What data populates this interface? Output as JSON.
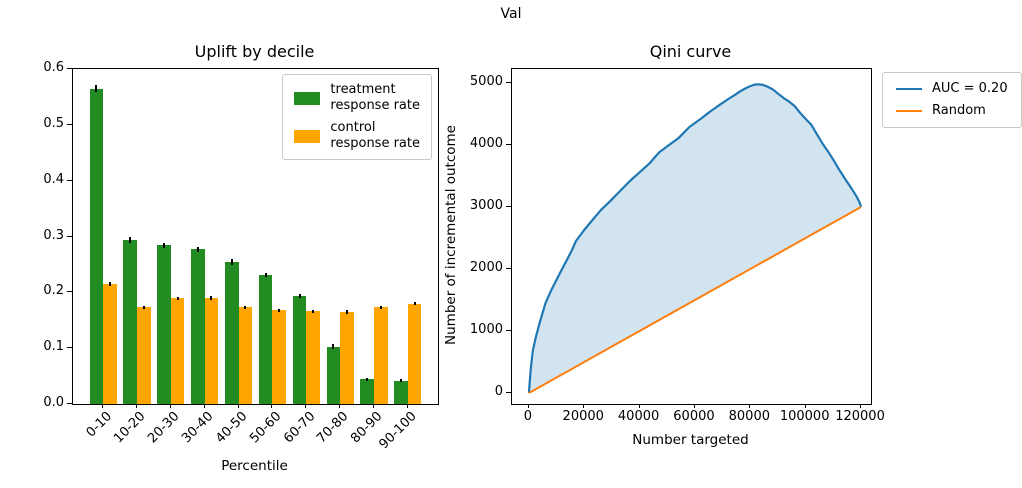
{
  "suptitle": "Val",
  "chart_data": [
    {
      "type": "bar",
      "title": "Uplift by decile",
      "xlabel": "Percentile",
      "categories": [
        "0-10",
        "10-20",
        "20-30",
        "30-40",
        "40-50",
        "50-60",
        "60-70",
        "70-80",
        "80-90",
        "90-100"
      ],
      "series": [
        {
          "name": "treatment\nresponse rate",
          "color": "#228B22",
          "values": [
            0.565,
            0.294,
            0.284,
            0.277,
            0.254,
            0.231,
            0.193,
            0.103,
            0.044,
            0.042
          ],
          "errors": [
            0.006,
            0.005,
            0.005,
            0.005,
            0.005,
            0.004,
            0.004,
            0.004,
            0.002,
            0.002
          ]
        },
        {
          "name": "control\nresponse rate",
          "color": "#FFA500",
          "values": [
            0.215,
            0.173,
            0.189,
            0.19,
            0.173,
            0.168,
            0.166,
            0.165,
            0.173,
            0.18
          ],
          "errors": [
            0.004,
            0.003,
            0.003,
            0.003,
            0.003,
            0.003,
            0.003,
            0.003,
            0.003,
            0.003
          ]
        }
      ],
      "ylim": [
        0,
        0.6
      ],
      "yticks": [
        0,
        0.1,
        0.2,
        0.3,
        0.4,
        0.5,
        0.6
      ],
      "ytick_labels": [
        "0.0",
        "0.1",
        "0.2",
        "0.3",
        "0.4",
        "0.5",
        "0.6"
      ],
      "xlim": [
        -0.89,
        9.89
      ],
      "bar_width": 0.4,
      "grid": false,
      "legend_position": "upper right"
    },
    {
      "type": "line",
      "title": "Qini curve",
      "xlabel": "Number targeted",
      "ylabel": "Number of incremental outcome",
      "series": [
        {
          "name": "AUC = 0.20",
          "color": "#1f77b4",
          "fill": "rgba(31,119,180,0.2)",
          "points": [
            [
              0,
              0
            ],
            [
              700,
              400
            ],
            [
              1400,
              680
            ],
            [
              2500,
              900
            ],
            [
              4000,
              1150
            ],
            [
              6000,
              1450
            ],
            [
              8000,
              1650
            ],
            [
              10000,
              1830
            ],
            [
              12000,
              2000
            ],
            [
              14000,
              2170
            ],
            [
              15500,
              2300
            ],
            [
              17000,
              2450
            ],
            [
              20000,
              2630
            ],
            [
              23000,
              2790
            ],
            [
              26000,
              2950
            ],
            [
              29500,
              3100
            ],
            [
              33000,
              3260
            ],
            [
              36500,
              3420
            ],
            [
              40000,
              3560
            ],
            [
              43500,
              3700
            ],
            [
              47000,
              3880
            ],
            [
              50000,
              3980
            ],
            [
              54000,
              4110
            ],
            [
              58000,
              4290
            ],
            [
              62000,
              4420
            ],
            [
              65500,
              4540
            ],
            [
              69000,
              4650
            ],
            [
              72000,
              4740
            ],
            [
              74500,
              4810
            ],
            [
              76500,
              4870
            ],
            [
              78500,
              4920
            ],
            [
              80000,
              4950
            ],
            [
              81500,
              4975
            ],
            [
              83000,
              4980
            ],
            [
              84500,
              4970
            ],
            [
              86000,
              4945
            ],
            [
              88000,
              4900
            ],
            [
              90000,
              4830
            ],
            [
              92000,
              4760
            ],
            [
              94000,
              4700
            ],
            [
              96000,
              4630
            ],
            [
              98000,
              4520
            ],
            [
              100000,
              4420
            ],
            [
              102000,
              4330
            ],
            [
              104000,
              4180
            ],
            [
              106000,
              4030
            ],
            [
              108000,
              3900
            ],
            [
              110000,
              3760
            ],
            [
              112000,
              3610
            ],
            [
              114000,
              3470
            ],
            [
              115500,
              3370
            ],
            [
              117000,
              3270
            ],
            [
              118500,
              3160
            ],
            [
              119500,
              3070
            ],
            [
              120000,
              3000
            ]
          ]
        },
        {
          "name": "Random",
          "color": "#ff7f0e",
          "points": [
            [
              0,
              0
            ],
            [
              120000,
              3000
            ]
          ]
        }
      ],
      "xlim": [
        -6100,
        123600
      ],
      "ylim": [
        -177,
        5226
      ],
      "xticks": [
        0,
        20000,
        40000,
        60000,
        80000,
        100000,
        120000
      ],
      "xtick_labels": [
        "0",
        "20000",
        "40000",
        "60000",
        "80000",
        "100000",
        "120000"
      ],
      "yticks": [
        0,
        1000,
        2000,
        3000,
        4000,
        5000
      ],
      "ytick_labels": [
        "0",
        "1000",
        "2000",
        "3000",
        "4000",
        "5000"
      ],
      "grid": false,
      "legend_position": "outside upper right"
    }
  ]
}
